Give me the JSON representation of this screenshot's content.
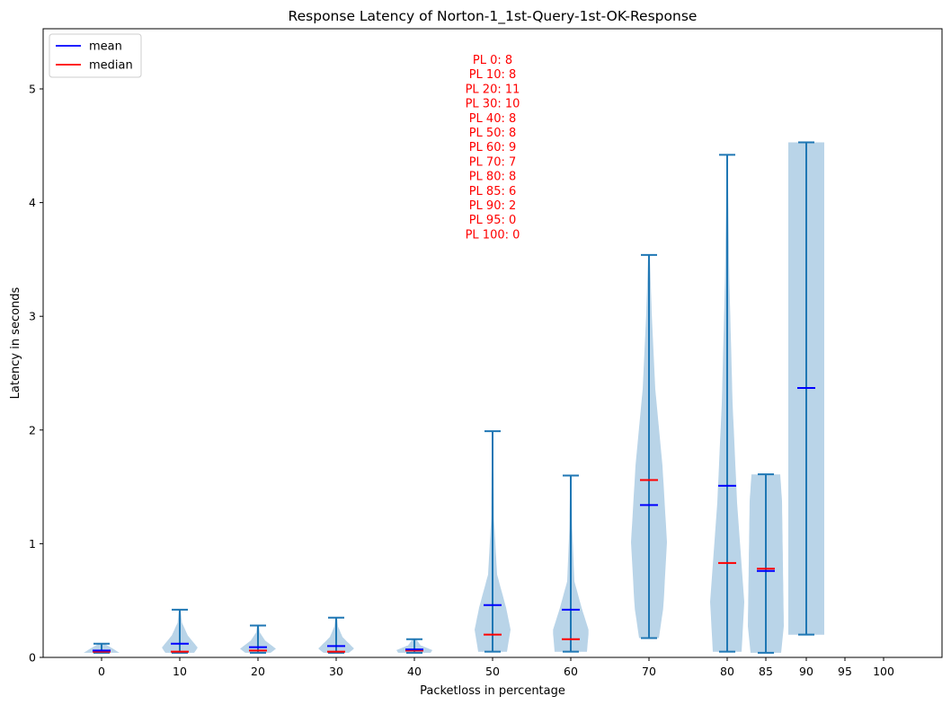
{
  "chart_data": {
    "type": "violin",
    "title": "Response Latency of Norton-1_1st-Query-1st-OK-Response",
    "xlabel": "Packetloss in percentage",
    "ylabel": "Latency in seconds",
    "x_ticks": [
      0,
      10,
      20,
      30,
      40,
      50,
      60,
      70,
      80,
      85,
      90,
      95,
      100
    ],
    "y_ticks": [
      0,
      1,
      2,
      3,
      4,
      5
    ],
    "ylim": [
      0,
      5.5
    ],
    "legend": {
      "placement": "top-left",
      "entries": [
        {
          "label": "mean",
          "color": "#0000ff"
        },
        {
          "label": "median",
          "color": "#ff0000"
        }
      ]
    },
    "annotation_lines": [
      "PL 0: 8",
      "PL 10: 8",
      "PL 20: 11",
      "PL 30: 10",
      "PL 40: 8",
      "PL 50: 8",
      "PL 60: 9",
      "PL 70: 7",
      "PL 80: 8",
      "PL 85: 6",
      "PL 90: 2",
      "PL 95: 0",
      "PL 100: 0"
    ],
    "violins": [
      {
        "x": 0,
        "min": 0.04,
        "max": 0.12,
        "mean": 0.06,
        "median": 0.05
      },
      {
        "x": 10,
        "min": 0.04,
        "max": 0.42,
        "mean": 0.12,
        "median": 0.05
      },
      {
        "x": 20,
        "min": 0.04,
        "max": 0.28,
        "mean": 0.09,
        "median": 0.06
      },
      {
        "x": 30,
        "min": 0.04,
        "max": 0.35,
        "mean": 0.1,
        "median": 0.05
      },
      {
        "x": 40,
        "min": 0.04,
        "max": 0.16,
        "mean": 0.07,
        "median": 0.06
      },
      {
        "x": 50,
        "min": 0.05,
        "max": 1.99,
        "mean": 0.46,
        "median": 0.2
      },
      {
        "x": 60,
        "min": 0.05,
        "max": 1.6,
        "mean": 0.42,
        "median": 0.16
      },
      {
        "x": 70,
        "min": 0.17,
        "max": 3.54,
        "mean": 1.34,
        "median": 1.56
      },
      {
        "x": 80,
        "min": 0.05,
        "max": 4.42,
        "mean": 1.51,
        "median": 0.83
      },
      {
        "x": 85,
        "min": 0.04,
        "max": 1.61,
        "mean": 0.76,
        "median": 0.78
      },
      {
        "x": 90,
        "min": 0.2,
        "max": 4.53,
        "mean": 2.37,
        "median": 2.37
      }
    ],
    "colors": {
      "body": "#b9d4e8",
      "whisker": "#1f77b4",
      "mean": "#0000ff",
      "median": "#ff0000"
    }
  }
}
